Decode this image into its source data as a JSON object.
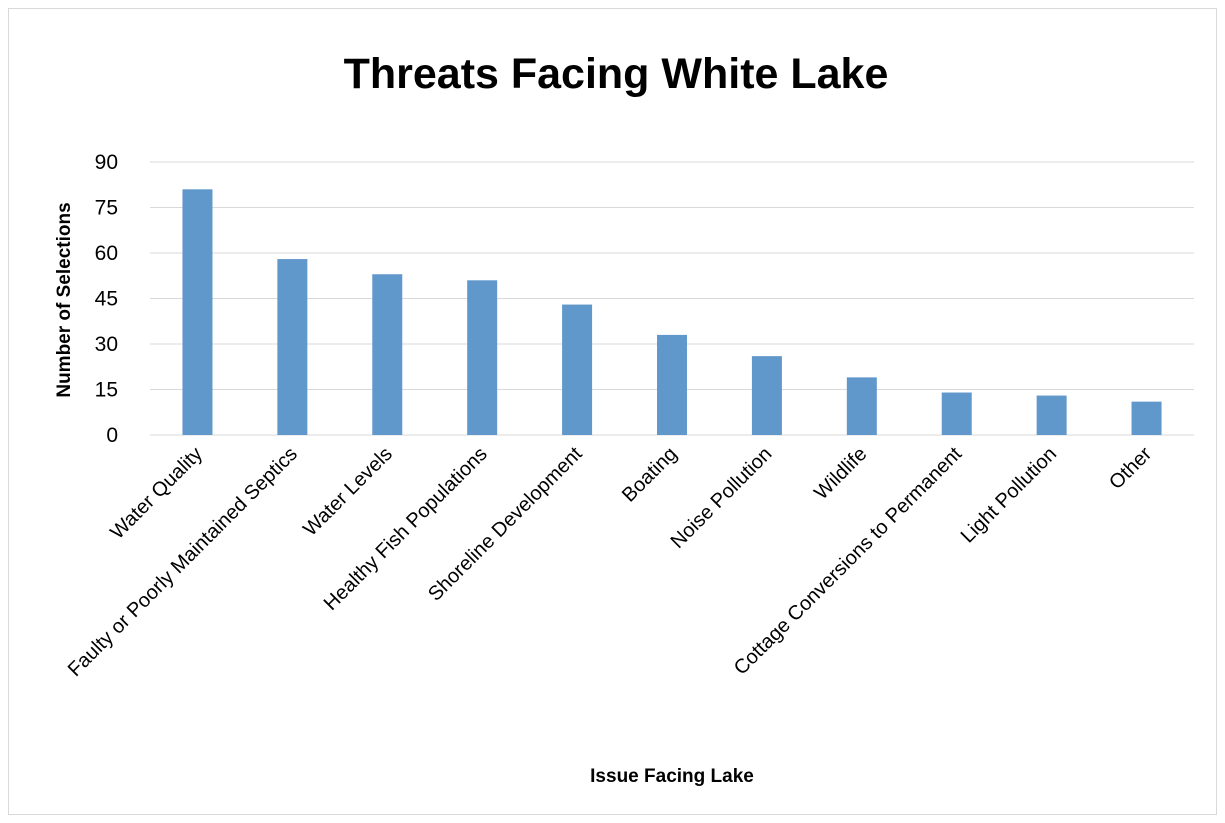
{
  "chart_data": {
    "type": "bar",
    "title": "Threats Facing White Lake",
    "xlabel": "Issue Facing Lake",
    "ylabel": "Number of Selections",
    "categories": [
      "Water Quality",
      "Faulty or Poorly Maintained Septics",
      "Water Levels",
      "Healthy Fish Populations",
      "Shoreline Development",
      "Boating",
      "Noise Pollution",
      "Wildlife",
      "Cottage Conversions to Permanent",
      "Light Pollution",
      "Other"
    ],
    "values": [
      81,
      58,
      53,
      51,
      43,
      33,
      26,
      19,
      14,
      13,
      11
    ],
    "ylim": [
      0,
      90
    ],
    "yticks": [
      0,
      15,
      30,
      45,
      60,
      75,
      90
    ],
    "grid": true,
    "legend": "none",
    "bar_color": "#6198cc"
  }
}
